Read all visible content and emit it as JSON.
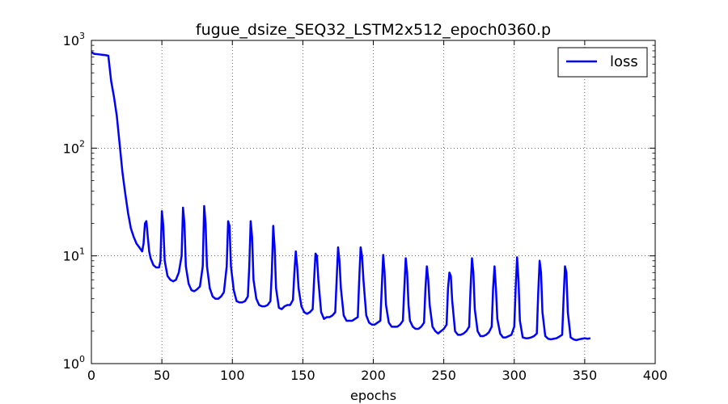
{
  "chart_data": {
    "type": "line",
    "title": "fugue_dsize_SEQ32_LSTM2x512_epoch0360.p",
    "xlabel": "epochs",
    "ylabel": "",
    "xlim": [
      0,
      400
    ],
    "ylim": [
      1,
      1000
    ],
    "yscale": "log",
    "grid": true,
    "legend_position": "upper right",
    "x_ticks": [
      "0",
      "50",
      "100",
      "150",
      "200",
      "250",
      "300",
      "350",
      "400"
    ],
    "y_ticks": [
      {
        "base": "10",
        "exp": "0"
      },
      {
        "base": "10",
        "exp": "1"
      },
      {
        "base": "10",
        "exp": "2"
      },
      {
        "base": "10",
        "exp": "3"
      }
    ],
    "series": [
      {
        "name": "loss",
        "color": "#0000ff",
        "points": [
          [
            0,
            780
          ],
          [
            2,
            750
          ],
          [
            4,
            745
          ],
          [
            6,
            740
          ],
          [
            8,
            735
          ],
          [
            10,
            730
          ],
          [
            12,
            720
          ],
          [
            14,
            420
          ],
          [
            16,
            300
          ],
          [
            18,
            200
          ],
          [
            20,
            110
          ],
          [
            22,
            60
          ],
          [
            24,
            38
          ],
          [
            26,
            25
          ],
          [
            28,
            18
          ],
          [
            30,
            15
          ],
          [
            32,
            13
          ],
          [
            34,
            12
          ],
          [
            36,
            11
          ],
          [
            37,
            13
          ],
          [
            38,
            20
          ],
          [
            39,
            21
          ],
          [
            40,
            15
          ],
          [
            41,
            11
          ],
          [
            42,
            9.5
          ],
          [
            44,
            8.2
          ],
          [
            46,
            7.8
          ],
          [
            48,
            7.8
          ],
          [
            49,
            9
          ],
          [
            50,
            26
          ],
          [
            51,
            19
          ],
          [
            52,
            9
          ],
          [
            54,
            6.5
          ],
          [
            56,
            6.0
          ],
          [
            58,
            5.8
          ],
          [
            60,
            6.0
          ],
          [
            62,
            7
          ],
          [
            64,
            10
          ],
          [
            65,
            28
          ],
          [
            66,
            20
          ],
          [
            67,
            8
          ],
          [
            69,
            5.5
          ],
          [
            71,
            4.8
          ],
          [
            73,
            4.7
          ],
          [
            75,
            4.9
          ],
          [
            77,
            5.2
          ],
          [
            79,
            8
          ],
          [
            80,
            29
          ],
          [
            81,
            20
          ],
          [
            82,
            8
          ],
          [
            84,
            5
          ],
          [
            86,
            4.2
          ],
          [
            88,
            4.0
          ],
          [
            90,
            4.0
          ],
          [
            92,
            4.2
          ],
          [
            94,
            4.6
          ],
          [
            96,
            8
          ],
          [
            97,
            21
          ],
          [
            98,
            19
          ],
          [
            99,
            8
          ],
          [
            101,
            4.8
          ],
          [
            103,
            3.8
          ],
          [
            105,
            3.7
          ],
          [
            107,
            3.7
          ],
          [
            109,
            3.8
          ],
          [
            111,
            4.2
          ],
          [
            112,
            8
          ],
          [
            113,
            21
          ],
          [
            114,
            15
          ],
          [
            115,
            6
          ],
          [
            117,
            4.0
          ],
          [
            119,
            3.5
          ],
          [
            121,
            3.4
          ],
          [
            123,
            3.4
          ],
          [
            125,
            3.5
          ],
          [
            127,
            3.8
          ],
          [
            128,
            7
          ],
          [
            129,
            19
          ],
          [
            130,
            12
          ],
          [
            131,
            5
          ],
          [
            133,
            3.3
          ],
          [
            135,
            3.2
          ],
          [
            137,
            3.4
          ],
          [
            139,
            3.5
          ],
          [
            141,
            3.5
          ],
          [
            143,
            3.9
          ],
          [
            144,
            7
          ],
          [
            145,
            11
          ],
          [
            146,
            8
          ],
          [
            147,
            5
          ],
          [
            149,
            3.4
          ],
          [
            151,
            3.0
          ],
          [
            153,
            2.9
          ],
          [
            155,
            3.0
          ],
          [
            157,
            3.2
          ],
          [
            158,
            6
          ],
          [
            159,
            10.5
          ],
          [
            160,
            10
          ],
          [
            161,
            6
          ],
          [
            163,
            3.0
          ],
          [
            165,
            2.6
          ],
          [
            167,
            2.7
          ],
          [
            169,
            2.7
          ],
          [
            171,
            2.8
          ],
          [
            173,
            3.0
          ],
          [
            174,
            6
          ],
          [
            175,
            12
          ],
          [
            176,
            9
          ],
          [
            177,
            5
          ],
          [
            179,
            2.8
          ],
          [
            181,
            2.5
          ],
          [
            183,
            2.5
          ],
          [
            185,
            2.5
          ],
          [
            187,
            2.6
          ],
          [
            189,
            2.7
          ],
          [
            190,
            6
          ],
          [
            191,
            12
          ],
          [
            192,
            10
          ],
          [
            193,
            6
          ],
          [
            195,
            2.8
          ],
          [
            197,
            2.4
          ],
          [
            199,
            2.3
          ],
          [
            201,
            2.3
          ],
          [
            203,
            2.4
          ],
          [
            205,
            2.5
          ],
          [
            206,
            5
          ],
          [
            207,
            10.2
          ],
          [
            208,
            7
          ],
          [
            209,
            3.5
          ],
          [
            211,
            2.4
          ],
          [
            213,
            2.2
          ],
          [
            215,
            2.2
          ],
          [
            217,
            2.2
          ],
          [
            219,
            2.3
          ],
          [
            221,
            2.5
          ],
          [
            222,
            5
          ],
          [
            223,
            9.5
          ],
          [
            224,
            7
          ],
          [
            225,
            3.5
          ],
          [
            226,
            2.5
          ],
          [
            228,
            2.2
          ],
          [
            230,
            2.1
          ],
          [
            232,
            2.1
          ],
          [
            234,
            2.2
          ],
          [
            236,
            2.4
          ],
          [
            237,
            5
          ],
          [
            238,
            8
          ],
          [
            239,
            6
          ],
          [
            240,
            3.5
          ],
          [
            242,
            2.2
          ],
          [
            244,
            2.0
          ],
          [
            246,
            1.9
          ],
          [
            248,
            2.0
          ],
          [
            250,
            2.1
          ],
          [
            252,
            2.3
          ],
          [
            253,
            5
          ],
          [
            254,
            7
          ],
          [
            255,
            6.5
          ],
          [
            256,
            3.8
          ],
          [
            258,
            2.0
          ],
          [
            260,
            1.85
          ],
          [
            262,
            1.85
          ],
          [
            264,
            1.9
          ],
          [
            266,
            2.0
          ],
          [
            268,
            2.2
          ],
          [
            269,
            5
          ],
          [
            270,
            9.5
          ],
          [
            271,
            7
          ],
          [
            272,
            3.2
          ],
          [
            274,
            2.0
          ],
          [
            276,
            1.8
          ],
          [
            278,
            1.8
          ],
          [
            280,
            1.85
          ],
          [
            282,
            1.95
          ],
          [
            284,
            2.2
          ],
          [
            285,
            5
          ],
          [
            286,
            8
          ],
          [
            287,
            5
          ],
          [
            288,
            2.6
          ],
          [
            290,
            1.9
          ],
          [
            292,
            1.75
          ],
          [
            294,
            1.75
          ],
          [
            296,
            1.8
          ],
          [
            298,
            1.85
          ],
          [
            300,
            2.2
          ],
          [
            301,
            5
          ],
          [
            302,
            9.7
          ],
          [
            303,
            6
          ],
          [
            304,
            2.5
          ],
          [
            306,
            1.75
          ],
          [
            308,
            1.72
          ],
          [
            310,
            1.72
          ],
          [
            312,
            1.75
          ],
          [
            314,
            1.8
          ],
          [
            316,
            1.9
          ],
          [
            317,
            4.5
          ],
          [
            318,
            9
          ],
          [
            319,
            7
          ],
          [
            320,
            3
          ],
          [
            322,
            1.8
          ],
          [
            324,
            1.7
          ],
          [
            326,
            1.68
          ],
          [
            328,
            1.7
          ],
          [
            330,
            1.72
          ],
          [
            332,
            1.78
          ],
          [
            334,
            1.85
          ],
          [
            335,
            4
          ],
          [
            336,
            8
          ],
          [
            337,
            7
          ],
          [
            338,
            3
          ],
          [
            340,
            1.75
          ],
          [
            342,
            1.68
          ],
          [
            344,
            1.65
          ],
          [
            346,
            1.68
          ],
          [
            348,
            1.7
          ],
          [
            350,
            1.72
          ],
          [
            352,
            1.7
          ],
          [
            354,
            1.72
          ]
        ]
      }
    ]
  }
}
